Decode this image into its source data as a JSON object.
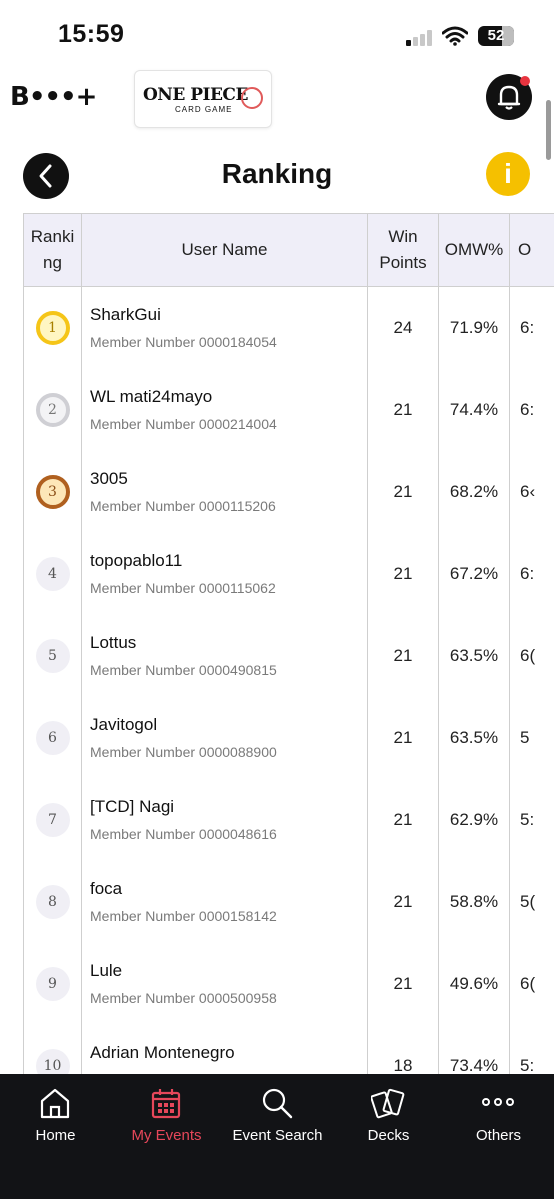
{
  "status_bar": {
    "time": "15:59",
    "battery": "52"
  },
  "header": {
    "brand": "B•••+",
    "game_logo_line1": "ONE PIECE",
    "game_logo_line2": "CARD GAME"
  },
  "page": {
    "title": "Ranking",
    "info_label": "i"
  },
  "table": {
    "columns": [
      "Ranki ng",
      "User Name",
      "Win Points",
      "OMW%",
      "O"
    ],
    "rows": [
      {
        "rank": "1",
        "name": "SharkGui",
        "member": "Member Number 0000184054",
        "points": "24",
        "omw": "71.9%",
        "extra": "6:"
      },
      {
        "rank": "2",
        "name": "WL mati24mayo",
        "member": "Member Number 0000214004",
        "points": "21",
        "omw": "74.4%",
        "extra": "6:"
      },
      {
        "rank": "3",
        "name": "3005",
        "member": "Member Number 0000115206",
        "points": "21",
        "omw": "68.2%",
        "extra": "6‹"
      },
      {
        "rank": "4",
        "name": "topopablo11",
        "member": "Member Number 0000115062",
        "points": "21",
        "omw": "67.2%",
        "extra": "6:"
      },
      {
        "rank": "5",
        "name": "Lottus",
        "member": "Member Number 0000490815",
        "points": "21",
        "omw": "63.5%",
        "extra": "6("
      },
      {
        "rank": "6",
        "name": "Javitogol",
        "member": "Member Number 0000088900",
        "points": "21",
        "omw": "63.5%",
        "extra": "5"
      },
      {
        "rank": "7",
        "name": "[TCD] Nagi",
        "member": "Member Number 0000048616",
        "points": "21",
        "omw": "62.9%",
        "extra": "5:"
      },
      {
        "rank": "8",
        "name": "foca",
        "member": "Member Number 0000158142",
        "points": "21",
        "omw": "58.8%",
        "extra": "5("
      },
      {
        "rank": "9",
        "name": "Lule",
        "member": "Member Number 0000500958",
        "points": "21",
        "omw": "49.6%",
        "extra": "6("
      },
      {
        "rank": "10",
        "name": "Adrian Montenegro",
        "member": "",
        "points": "18",
        "omw": "73.4%",
        "extra": "5:"
      }
    ]
  },
  "bottom_nav": {
    "items": [
      {
        "label": "Home",
        "icon": "home-icon"
      },
      {
        "label": "My Events",
        "icon": "calendar-icon"
      },
      {
        "label": "Event Search",
        "icon": "search-icon"
      },
      {
        "label": "Decks",
        "icon": "cards-icon"
      },
      {
        "label": "Others",
        "icon": "more-icon"
      }
    ],
    "active": "My Events",
    "active_color": "#e6475a"
  }
}
